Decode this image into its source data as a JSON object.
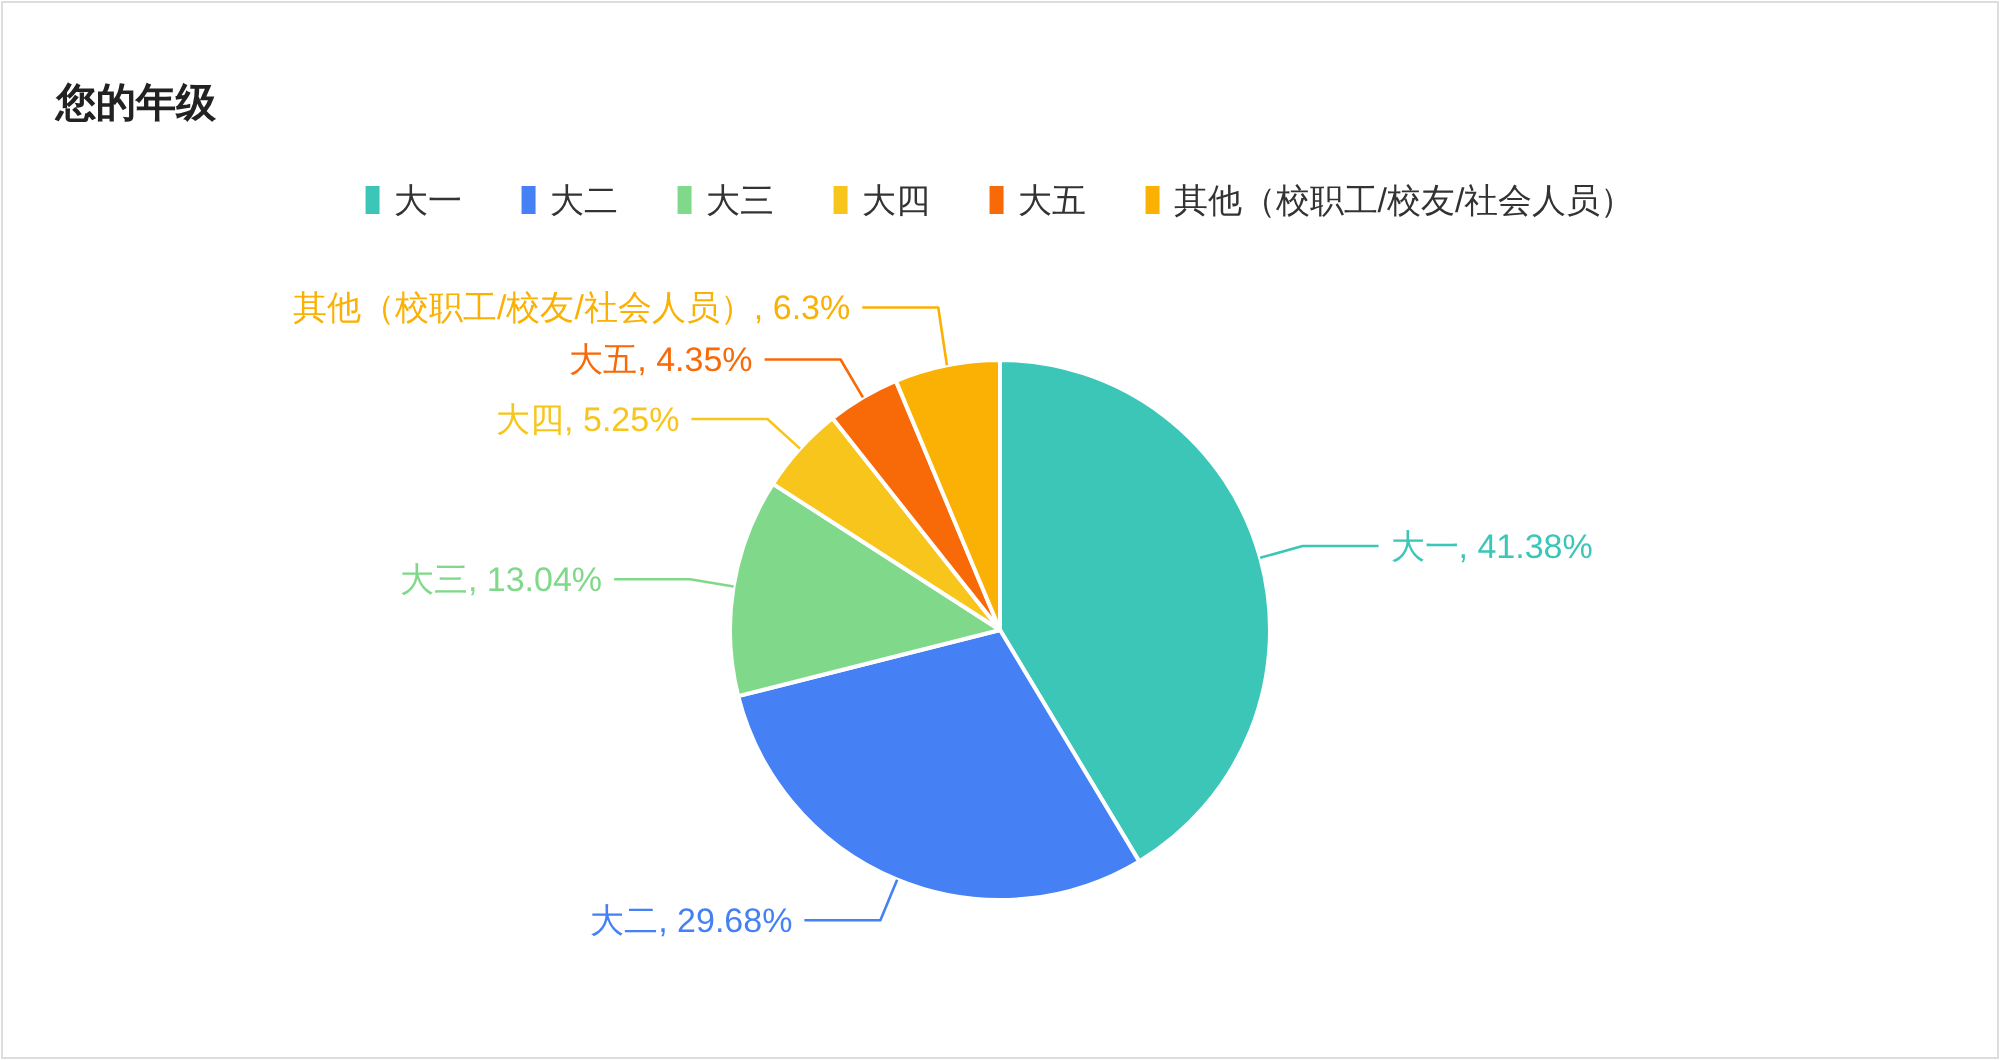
{
  "chart_data": {
    "type": "pie",
    "title": "您的年级",
    "categories": [
      "大一",
      "大二",
      "大三",
      "大四",
      "大五",
      "其他（校职工/校友/社会人员）"
    ],
    "values": [
      41.38,
      29.68,
      13.04,
      5.25,
      4.35,
      6.3
    ],
    "colors": [
      "#3cc6b8",
      "#4680f5",
      "#80d98a",
      "#f7c51b",
      "#f86a07",
      "#fbb104"
    ],
    "value_labels": [
      ", 41.38%",
      ", 29.68%",
      ", 13.04%",
      ", 5.25%",
      ", 4.35%",
      ", 6.3%"
    ],
    "legend": "top"
  }
}
